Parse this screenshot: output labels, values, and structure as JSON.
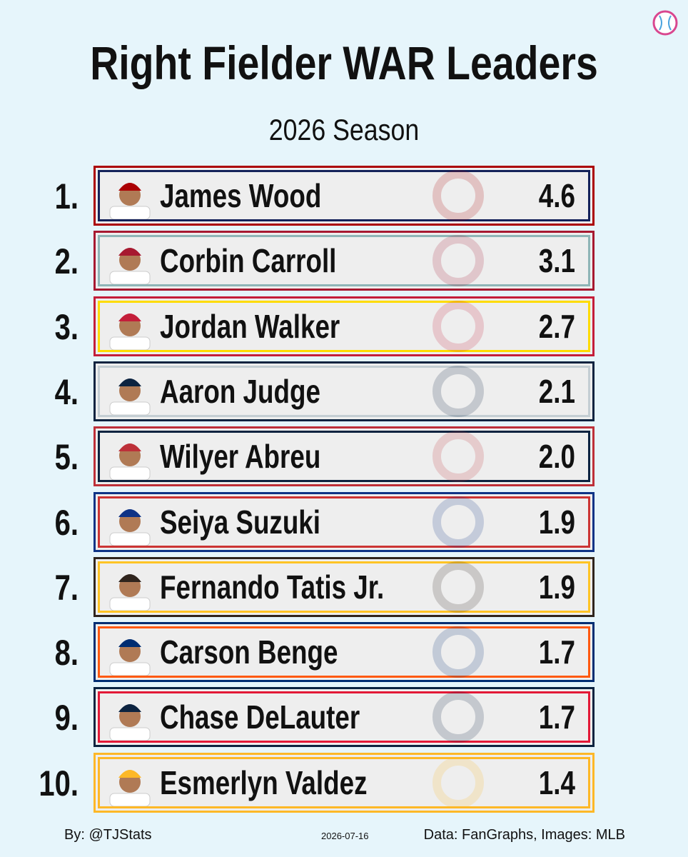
{
  "header": {
    "title": "Right Fielder WAR Leaders",
    "subtitle": "2026 Season"
  },
  "rows": [
    {
      "rank": "1.",
      "name": "James Wood",
      "war": "4.6"
    },
    {
      "rank": "2.",
      "name": "Corbin Carroll",
      "war": "3.1"
    },
    {
      "rank": "3.",
      "name": "Jordan Walker",
      "war": "2.7"
    },
    {
      "rank": "4.",
      "name": "Aaron Judge",
      "war": "2.1"
    },
    {
      "rank": "5.",
      "name": "Wilyer Abreu",
      "war": "2.0"
    },
    {
      "rank": "6.",
      "name": "Seiya Suzuki",
      "war": "1.9"
    },
    {
      "rank": "7.",
      "name": "Fernando Tatis Jr.",
      "war": "1.9"
    },
    {
      "rank": "8.",
      "name": "Carson Benge",
      "war": "1.7"
    },
    {
      "rank": "9.",
      "name": "Chase DeLauter",
      "war": "1.7"
    },
    {
      "rank": "10.",
      "name": "Esmerlyn Valdez",
      "war": "1.4"
    }
  ],
  "footer": {
    "credit": "By: @TJStats",
    "date": "2026-07-16",
    "source": "Data: FanGraphs, Images: MLB"
  }
}
